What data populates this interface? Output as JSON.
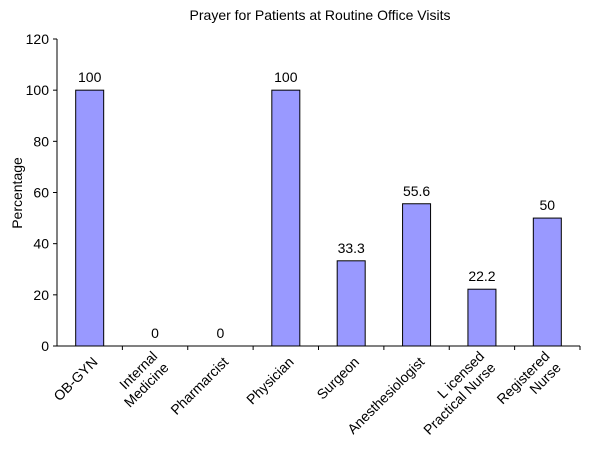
{
  "chart_data": {
    "type": "bar",
    "title": "Prayer for Patients at Routine Office Visits",
    "y_label": "Percentage",
    "categories": [
      "OB-GYN",
      "Internal Medicine",
      "Pharmarcist",
      "Physician",
      "Surgeon",
      "Anesthesiologist",
      "L icensed Practical Nurse",
      "Registered Nurse"
    ],
    "values": [
      100,
      0,
      0,
      100,
      33.3,
      55.6,
      22.2,
      50
    ],
    "color": "#9999ff",
    "ylim": [
      0,
      120
    ],
    "yticks": [
      0,
      20,
      40,
      60,
      80,
      100,
      120
    ],
    "grid": false
  }
}
